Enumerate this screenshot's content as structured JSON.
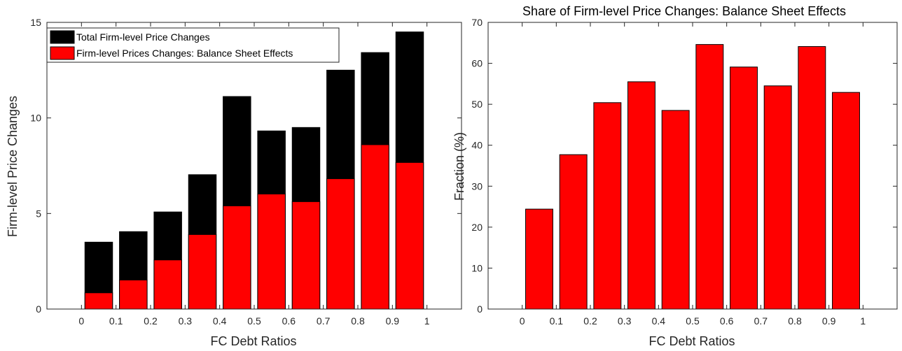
{
  "colors": {
    "black_bar": "#000000",
    "red_bar": "#ff0000",
    "axis": "#262626",
    "edge": "#000000"
  },
  "chart_data": [
    {
      "type": "bar",
      "title": "",
      "xlabel": "FC Debt Ratios",
      "ylabel": "Firm-level Price Changes",
      "x": [
        0.05,
        0.15,
        0.25,
        0.35,
        0.45,
        0.55,
        0.65,
        0.75,
        0.85,
        0.95
      ],
      "xlim": [
        -0.1,
        1.1
      ],
      "ylim": [
        0,
        15
      ],
      "xticks": [
        0,
        0.1,
        0.2,
        0.3,
        0.4,
        0.5,
        0.6,
        0.7,
        0.8,
        0.9,
        1
      ],
      "xtick_labels": [
        "0",
        "0.1",
        "0.2",
        "0.3",
        "0.4",
        "0.5",
        "0.6",
        "0.7",
        "0.8",
        "0.9",
        "1"
      ],
      "yticks": [
        0,
        5,
        10,
        15
      ],
      "ytick_labels": [
        "0",
        "5",
        "10",
        "15"
      ],
      "bar_width": 0.08,
      "legend_position": "top-left",
      "series": [
        {
          "name": "Total Firm-level Price Changes",
          "color": "#000000",
          "values": [
            3.5,
            4.05,
            5.08,
            7.03,
            11.12,
            9.32,
            9.5,
            12.5,
            13.42,
            14.5
          ]
        },
        {
          "name": "Firm-level Prices Changes: Balance Sheet Effects",
          "color": "#ff0000",
          "values": [
            0.85,
            1.52,
            2.57,
            3.9,
            5.4,
            6.02,
            5.62,
            6.82,
            8.6,
            7.67
          ]
        }
      ]
    },
    {
      "type": "bar",
      "title": "Share of Firm-level Price Changes: Balance Sheet Effects",
      "xlabel": "FC Debt Ratios",
      "ylabel": "Fraction (%)",
      "x": [
        0.05,
        0.15,
        0.25,
        0.35,
        0.45,
        0.55,
        0.65,
        0.75,
        0.85,
        0.95
      ],
      "xlim": [
        -0.1,
        1.1
      ],
      "ylim": [
        0,
        70
      ],
      "xticks": [
        0,
        0.1,
        0.2,
        0.3,
        0.4,
        0.5,
        0.6,
        0.7,
        0.8,
        0.9,
        1
      ],
      "xtick_labels": [
        "0",
        "0.1",
        "0.2",
        "0.3",
        "0.4",
        "0.5",
        "0.6",
        "0.7",
        "0.8",
        "0.9",
        "1"
      ],
      "yticks": [
        0,
        10,
        20,
        30,
        40,
        50,
        60,
        70
      ],
      "ytick_labels": [
        "0",
        "10",
        "20",
        "30",
        "40",
        "50",
        "60",
        "70"
      ],
      "bar_width": 0.08,
      "series": [
        {
          "color": "#ff0000",
          "values": [
            24.4,
            37.7,
            50.4,
            55.5,
            48.5,
            64.6,
            59.1,
            54.5,
            64.1,
            52.9
          ]
        }
      ]
    }
  ]
}
